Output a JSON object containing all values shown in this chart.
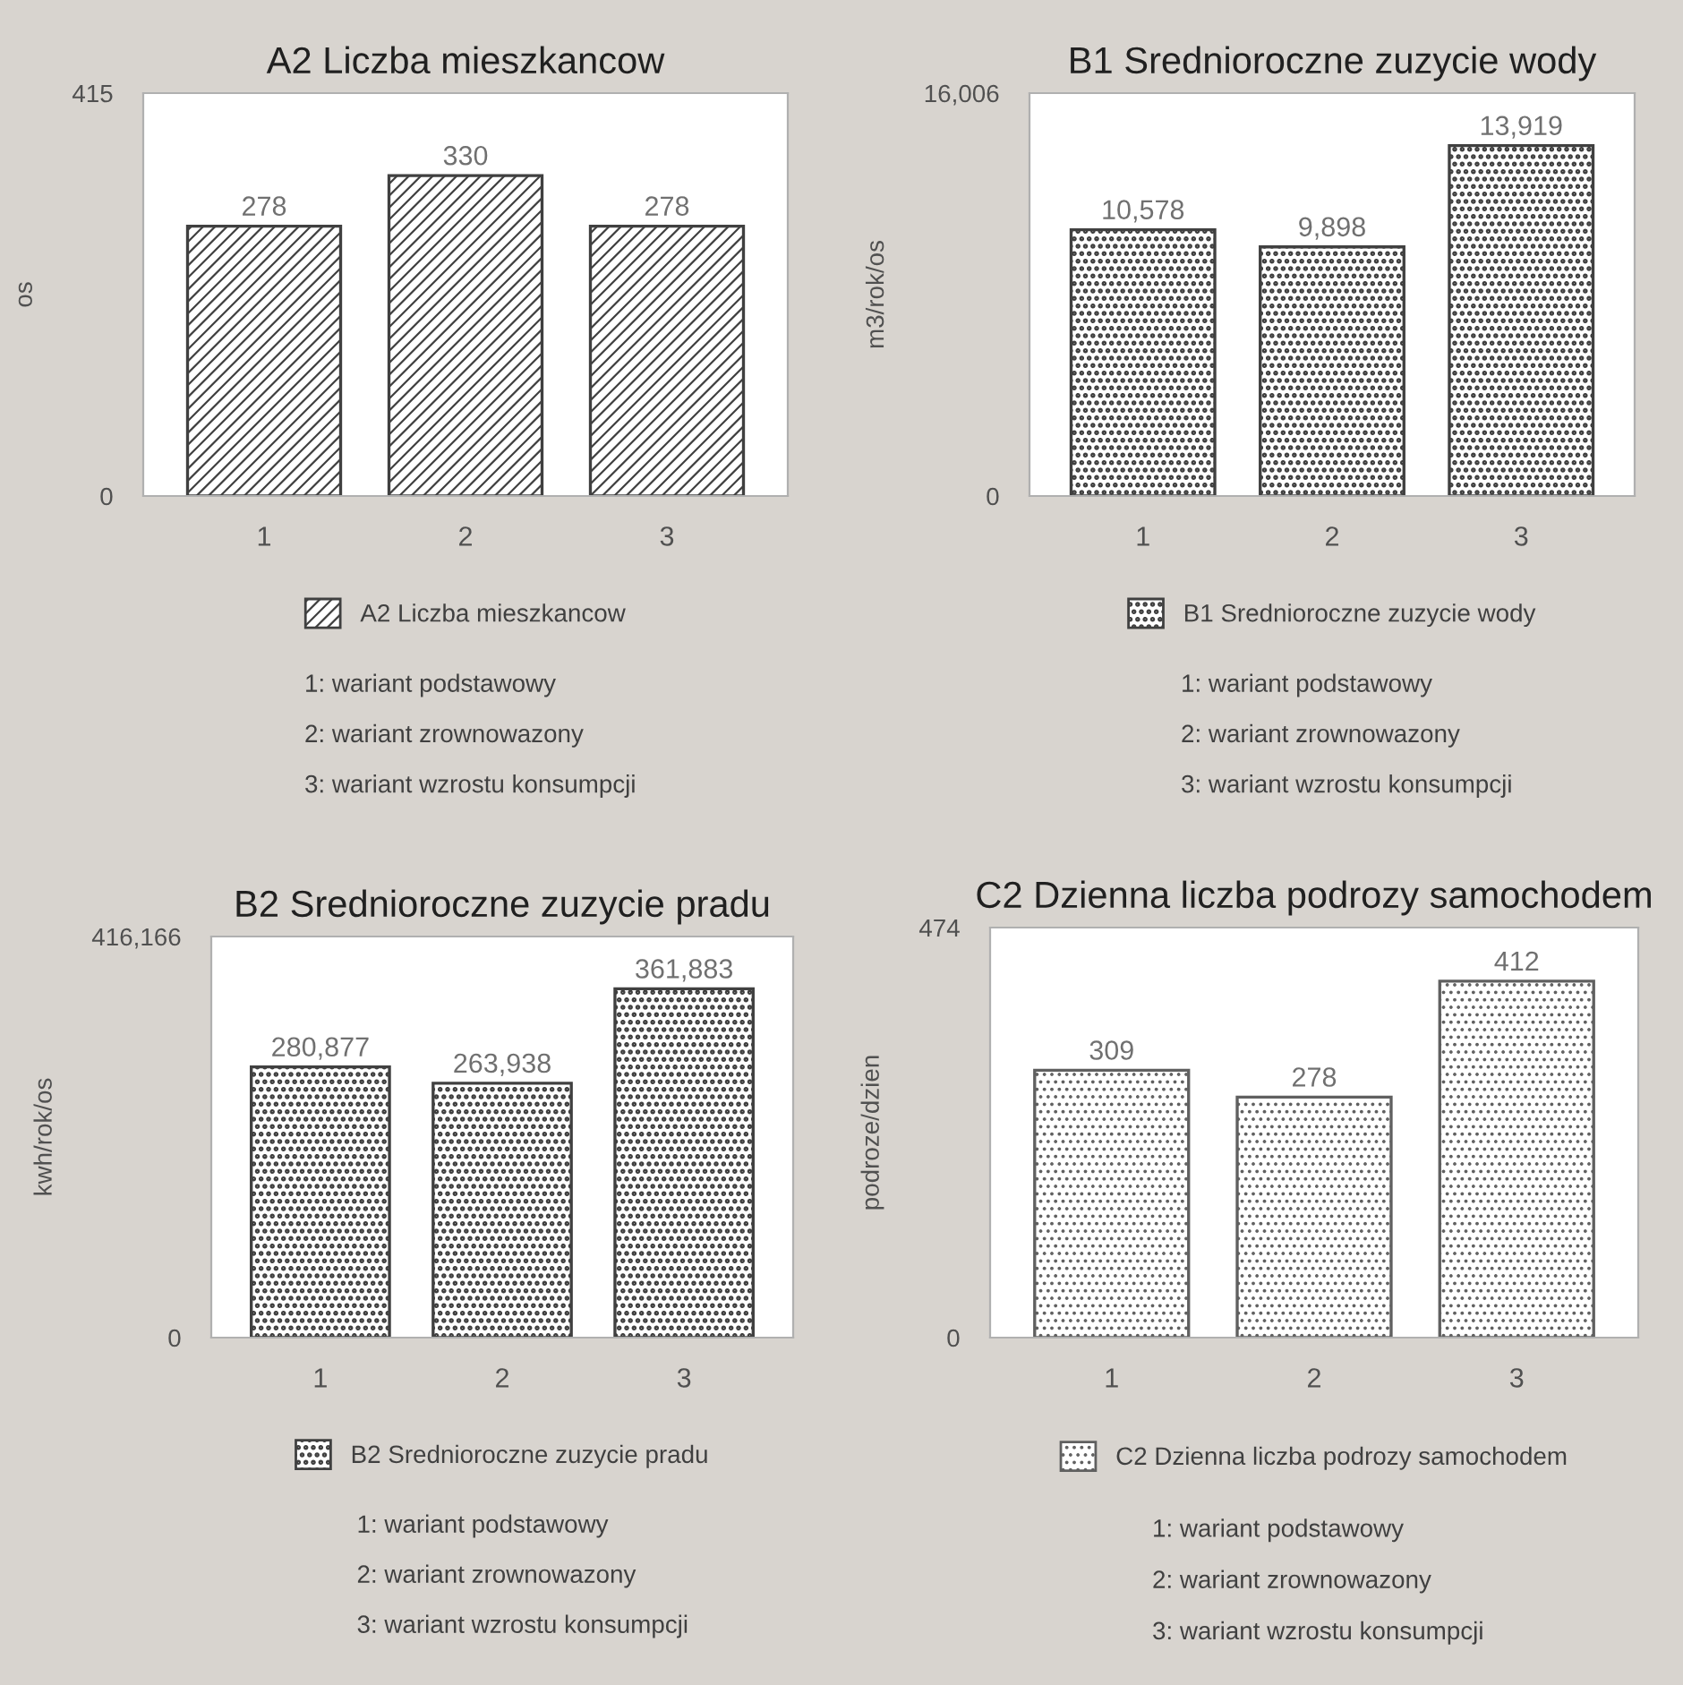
{
  "chart_data": [
    {
      "type": "bar",
      "title": "A2 Liczba mieszkancow",
      "ylabel": "os",
      "categories": [
        "1",
        "2",
        "3"
      ],
      "series": [
        {
          "name": "A2 Liczba mieszkancow",
          "color": "#404040",
          "values": [
            278,
            330,
            278
          ],
          "value_labels": [
            "278",
            "330",
            "278"
          ]
        }
      ],
      "ylim": [
        0,
        415
      ],
      "yticks": [
        0,
        415
      ],
      "grid": false,
      "legend": "bottom",
      "annotations": [
        "1: wariant podstawowy",
        "2: wariant zrownowazony",
        "3: wariant wzrostu konsumpcji"
      ]
    },
    {
      "type": "bar",
      "title": "B1 Srednioroczne zuzycie wody",
      "ylabel": "m3/rok/os",
      "categories": [
        "1",
        "2",
        "3"
      ],
      "series": [
        {
          "name": "B1 Srednioroczne zuzycie wody",
          "color": "#404040",
          "values": [
            10578,
            9898,
            13919
          ],
          "value_labels": [
            "10,578",
            "9,898",
            "13,919"
          ]
        }
      ],
      "ylim": [
        0,
        16006
      ],
      "yticks": [
        0,
        {
          "value": 16006,
          "label": "16,006"
        }
      ],
      "grid": false,
      "legend": "bottom",
      "annotations": [
        "1: wariant podstawowy",
        "2: wariant zrownowazony",
        "3: wariant wzrostu konsumpcji"
      ]
    },
    {
      "type": "bar",
      "title": "B2 Srednioroczne zuzycie pradu",
      "ylabel": "kwh/rok/os",
      "categories": [
        "1",
        "2",
        "3"
      ],
      "series": [
        {
          "name": "B2 Srednioroczne zuzycie pradu",
          "color": "#404040",
          "values": [
            280877,
            263938,
            361883
          ],
          "value_labels": [
            "280,877",
            "263,938",
            "361,883"
          ]
        }
      ],
      "ylim": [
        0,
        416166
      ],
      "yticks": [
        0,
        {
          "value": 416166,
          "label": "416,166"
        }
      ],
      "grid": false,
      "legend": "bottom",
      "annotations": [
        "1: wariant podstawowy",
        "2: wariant zrownowazony",
        "3: wariant wzrostu konsumpcji"
      ]
    },
    {
      "type": "bar",
      "title": "C2 Dzienna liczba podrozy samochodem",
      "ylabel": "podroze/dzien",
      "categories": [
        "1",
        "2",
        "3"
      ],
      "series": [
        {
          "name": "C2 Dzienna liczba podrozy samochodem",
          "color": "#606060",
          "values": [
            309,
            278,
            412
          ],
          "value_labels": [
            "309",
            "278",
            "412"
          ]
        }
      ],
      "ylim": [
        0,
        474
      ],
      "yticks": [
        0,
        474
      ],
      "grid": false,
      "legend": "bottom",
      "annotations": [
        "1: wariant podstawowy",
        "2: wariant zrownowazony",
        "3: wariant wzrostu konsumpcji"
      ]
    }
  ]
}
